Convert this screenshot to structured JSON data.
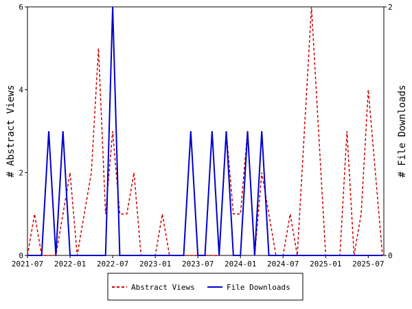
{
  "chart_data": {
    "type": "line",
    "categories": [
      "2021-07",
      null,
      null,
      null,
      null,
      null,
      "2022-01",
      null,
      null,
      null,
      null,
      null,
      "2022-07",
      null,
      null,
      null,
      null,
      null,
      "2023-01",
      null,
      null,
      null,
      null,
      null,
      "2023-07",
      null,
      null,
      null,
      null,
      null,
      "2024-01",
      null,
      null,
      null,
      null,
      null,
      "2024-07",
      null,
      null,
      null,
      null,
      null,
      "2025-01",
      null,
      null,
      null,
      null,
      null,
      "2025-07",
      null,
      null
    ],
    "series": [
      {
        "name": "Abstract Views",
        "color": "#cc0000",
        "dashed": true,
        "values": [
          0,
          1,
          0,
          0,
          0,
          1,
          2,
          0,
          1,
          2,
          5,
          1,
          3,
          1,
          1,
          2,
          0,
          0,
          0,
          1,
          0,
          0,
          0,
          0,
          0,
          0,
          0,
          0,
          3,
          1,
          1,
          3,
          0,
          2,
          1,
          0,
          0,
          1,
          0,
          3,
          6,
          3,
          0,
          0,
          0,
          3,
          0,
          1,
          4,
          2,
          0
        ]
      },
      {
        "name": "File Downloads",
        "color": "#0000cc",
        "axis": "y2",
        "values": [
          0,
          0,
          0,
          1,
          0,
          1,
          0,
          0,
          0,
          0,
          0,
          0,
          2,
          0,
          0,
          0,
          0,
          0,
          0,
          0,
          0,
          0,
          0,
          1,
          0,
          0,
          1,
          0,
          1,
          0,
          0,
          1,
          0,
          1,
          0,
          0,
          0,
          0,
          0,
          0,
          0,
          0,
          0,
          0,
          0,
          0,
          0,
          0,
          0,
          0,
          0
        ]
      }
    ],
    "ylabel": "# Abstract Views",
    "y2label": "# File Downloads",
    "ylim": [
      0,
      6
    ],
    "yticks": [
      0,
      2,
      4,
      6
    ],
    "y2lim": [
      0,
      2
    ],
    "y2ticks": [
      0,
      2
    ],
    "legend": "bottom"
  }
}
